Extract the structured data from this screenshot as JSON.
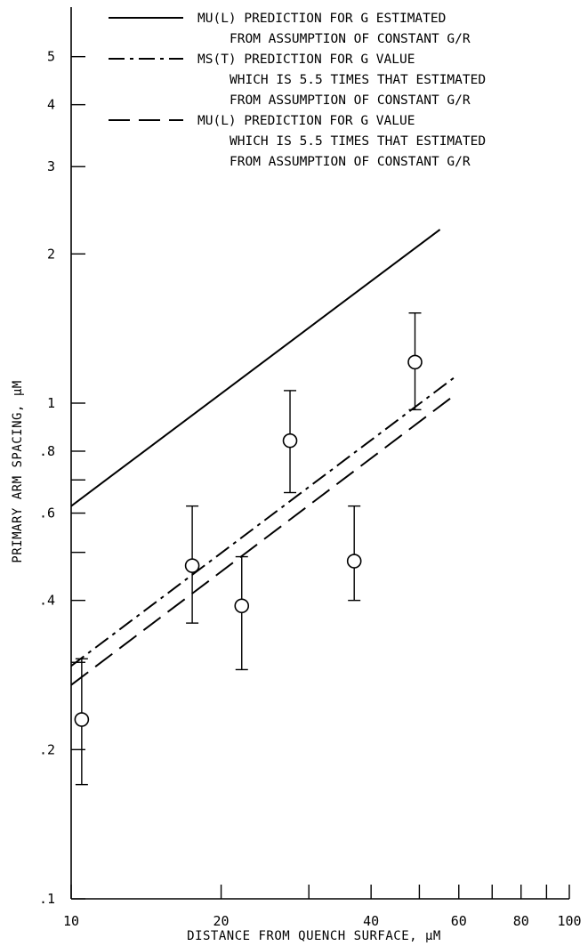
{
  "chart_data": {
    "type": "scatter",
    "xlabel": "DISTANCE FROM QUENCH SURFACE, µM",
    "ylabel": "PRIMARY ARM SPACING, µM",
    "x_scale": "log",
    "y_scale": "log",
    "xlim": [
      10,
      100
    ],
    "ylim": [
      0.1,
      6
    ],
    "x_ticks": [
      10,
      20,
      30,
      40,
      50,
      60,
      70,
      80,
      90,
      100
    ],
    "x_tick_labels": [
      {
        "value": 10,
        "label": "10"
      },
      {
        "value": 20,
        "label": "20"
      },
      {
        "value": 40,
        "label": "40"
      },
      {
        "value": 60,
        "label": "60"
      },
      {
        "value": 80,
        "label": "80"
      },
      {
        "value": 100,
        "label": "100"
      }
    ],
    "y_ticks": [
      0.1,
      0.2,
      0.3,
      0.4,
      0.5,
      0.6,
      0.7,
      0.8,
      1,
      2,
      3,
      4,
      5
    ],
    "y_tick_labels": [
      {
        "value": 0.1,
        "label": ".1"
      },
      {
        "value": 0.2,
        "label": ".2"
      },
      {
        "value": 0.4,
        "label": ".4"
      },
      {
        "value": 0.6,
        "label": ".6"
      },
      {
        "value": 0.8,
        "label": ".8"
      },
      {
        "value": 1,
        "label": "1"
      },
      {
        "value": 2,
        "label": "2"
      },
      {
        "value": 3,
        "label": "3"
      },
      {
        "value": 4,
        "label": "4"
      },
      {
        "value": 5,
        "label": "5"
      }
    ],
    "grid": false,
    "legend_position": "top",
    "points": [
      {
        "x": 10.5,
        "y": 0.23,
        "y_low": 0.17,
        "y_high": 0.305
      },
      {
        "x": 17.5,
        "y": 0.47,
        "y_low": 0.36,
        "y_high": 0.62
      },
      {
        "x": 22.0,
        "y": 0.39,
        "y_low": 0.29,
        "y_high": 0.49
      },
      {
        "x": 27.5,
        "y": 0.84,
        "y_low": 0.66,
        "y_high": 1.06
      },
      {
        "x": 37.0,
        "y": 0.48,
        "y_low": 0.4,
        "y_high": 0.62
      },
      {
        "x": 49.0,
        "y": 1.21,
        "y_low": 0.97,
        "y_high": 1.52
      }
    ],
    "series": [
      {
        "style": "solid",
        "x": [
          10,
          55
        ],
        "y": [
          0.62,
          2.24
        ],
        "legend": [
          "MU(L) PREDICTION FOR  G  ESTIMATED",
          "FROM ASSUMPTION OF CONSTANT  G/R"
        ]
      },
      {
        "style": "dash-dot",
        "x": [
          10,
          59
        ],
        "y": [
          0.295,
          1.13
        ],
        "legend": [
          "MS(T) PREDICTION FOR  G  VALUE",
          "WHICH IS 5.5 TIMES THAT ESTIMATED",
          "FROM ASSUMPTION OF CONSTANT  G/R"
        ]
      },
      {
        "style": "dashed",
        "x": [
          10,
          59
        ],
        "y": [
          0.27,
          1.04
        ],
        "legend": [
          "MU(L) PREDICTION FOR  G  VALUE",
          "WHICH IS 5.5 TIMES THAT ESTIMATED",
          "FROM ASSUMPTION OF CONSTANT  G/R"
        ]
      }
    ]
  }
}
